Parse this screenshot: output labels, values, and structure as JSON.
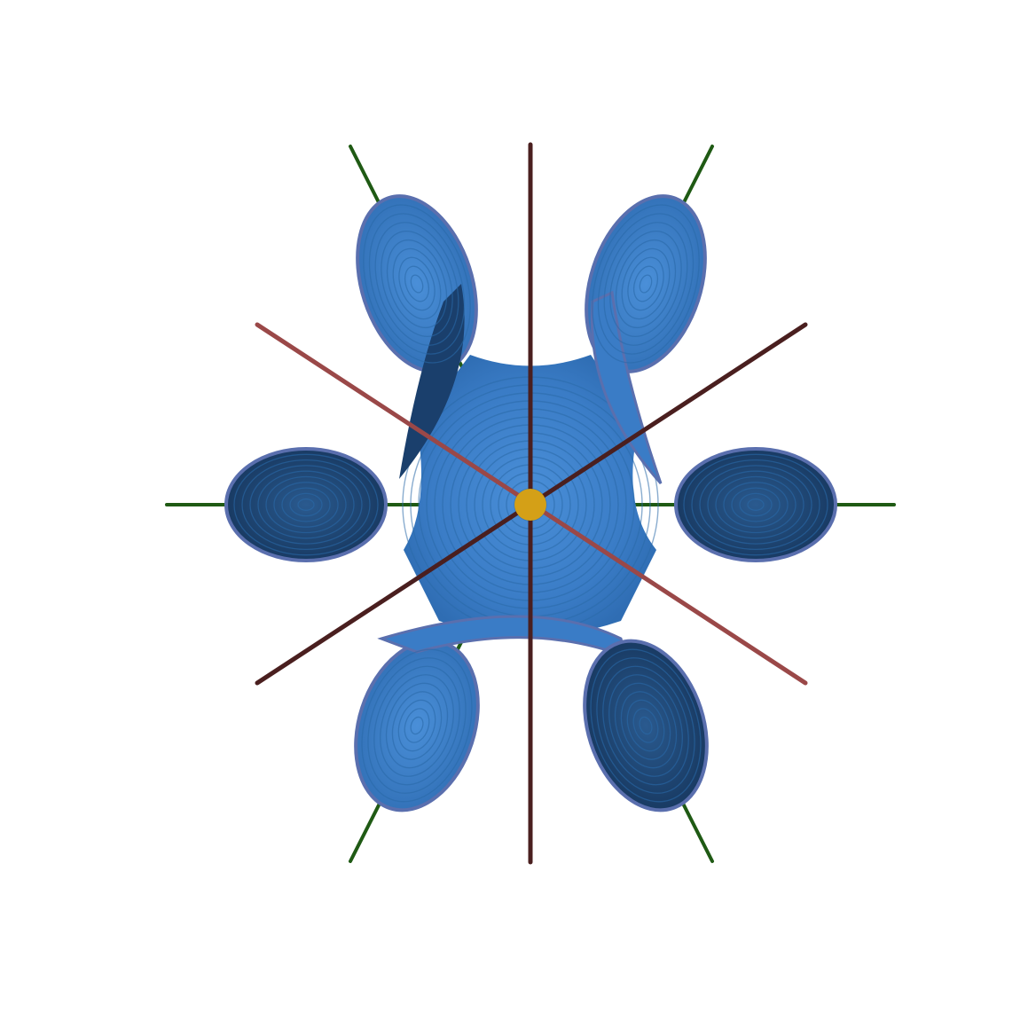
{
  "scene": {
    "background": "#ffffff",
    "surface": {
      "lobe_count": 6,
      "colors": {
        "light": "#4a8fd8",
        "mid": "#2f6db3",
        "dark": "#1a3f6c",
        "rim": "#5a6fae"
      }
    },
    "axes": [
      {
        "kind": "vertical",
        "color": "#4a1f1f"
      },
      {
        "kind": "diagonal-ne",
        "color": "#4a1f1f"
      },
      {
        "kind": "diagonal-nw",
        "color": "#9a4848"
      }
    ],
    "green_axes": {
      "color": "#1f5a14"
    },
    "center_marker": {
      "color": "#d4a017"
    }
  }
}
